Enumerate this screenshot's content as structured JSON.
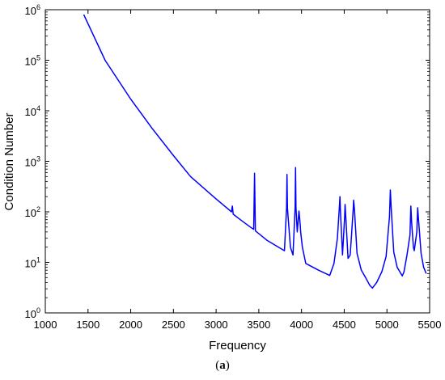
{
  "chart_data": {
    "type": "line",
    "title": "",
    "xlabel": "Frequency",
    "ylabel": "Condition Number",
    "xlim": [
      1000,
      5500
    ],
    "ylim": [
      1,
      1000000
    ],
    "yscale": "log",
    "xticks": [
      1000,
      1500,
      2000,
      2500,
      3000,
      3500,
      4000,
      4500,
      5000,
      5500
    ],
    "yticks": [
      {
        "value": 1,
        "base": "10",
        "exp": "0"
      },
      {
        "value": 10,
        "base": "10",
        "exp": "1"
      },
      {
        "value": 100,
        "base": "10",
        "exp": "2"
      },
      {
        "value": 1000,
        "base": "10",
        "exp": "3"
      },
      {
        "value": 10000,
        "base": "10",
        "exp": "4"
      },
      {
        "value": 100000,
        "base": "10",
        "exp": "5"
      },
      {
        "value": 1000000,
        "base": "10",
        "exp": "6"
      }
    ],
    "grid": false,
    "series": [
      {
        "color": "#0000ff",
        "x": [
          1450,
          1700,
          2000,
          2250,
          2500,
          2700,
          3000,
          3180,
          3190,
          3200,
          3260,
          3320,
          3400,
          3440,
          3450,
          3460,
          3600,
          3800,
          3825,
          3830,
          3835,
          3870,
          3900,
          3925,
          3930,
          3935,
          3950,
          3970,
          3985,
          3990,
          4010,
          4050,
          4200,
          4330,
          4380,
          4420,
          4445,
          4450,
          4455,
          4480,
          4505,
          4510,
          4520,
          4545,
          4570,
          4605,
          4610,
          4620,
          4650,
          4700,
          4750,
          4800,
          4830,
          4880,
          4940,
          4990,
          5030,
          5040,
          5050,
          5080,
          5120,
          5180,
          5200,
          5235,
          5270,
          5280,
          5290,
          5310,
          5320,
          5350,
          5360,
          5370,
          5400,
          5430,
          5460
        ],
        "y": [
          800000,
          100000,
          17000,
          4500,
          1300,
          500,
          180,
          100,
          130,
          90,
          75,
          63,
          50,
          45,
          580,
          42,
          27,
          17,
          120,
          550,
          120,
          20,
          14,
          120,
          750,
          120,
          40,
          104,
          55,
          40,
          20,
          9.5,
          7,
          5.5,
          9.5,
          30,
          140,
          200,
          110,
          14,
          80,
          140,
          70,
          12,
          14,
          110,
          170,
          110,
          15,
          7,
          5,
          3.5,
          3.1,
          4,
          6.5,
          13,
          80,
          270,
          120,
          16,
          8,
          5.4,
          6.5,
          14,
          35,
          130,
          60,
          20,
          17,
          40,
          120,
          70,
          15,
          8,
          6
        ]
      }
    ]
  },
  "caption": {
    "open": "(",
    "letter": "a",
    "close": ")"
  }
}
